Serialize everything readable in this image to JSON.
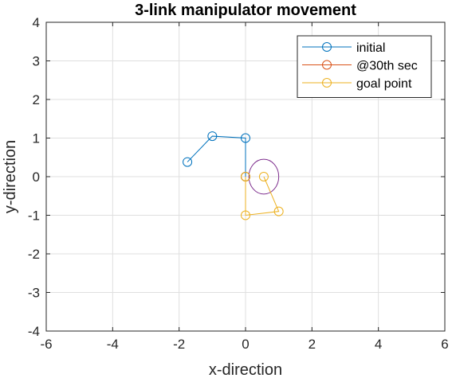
{
  "chart_data": {
    "type": "line",
    "title": "3-link manipulator movement",
    "xlabel": "x-direction",
    "ylabel": "y-direction",
    "xlim": [
      -6,
      6
    ],
    "ylim": [
      -4,
      4
    ],
    "xticks": [
      "-6",
      "-4",
      "-2",
      "0",
      "2",
      "4",
      "6"
    ],
    "yticks": [
      "4",
      "3",
      "2",
      "1",
      "0",
      "-1",
      "-2",
      "-3",
      "-4"
    ],
    "grid": true,
    "legend_position": "top-right",
    "series": [
      {
        "name": "initial",
        "color": "#0072BD",
        "marker": "circle",
        "x": [
          0,
          0,
          -1,
          -1.75
        ],
        "y": [
          0,
          1,
          1.05,
          0.38
        ]
      },
      {
        "name": "@30th sec",
        "color": "#D95319",
        "marker": "circle",
        "x": [
          0
        ],
        "y": [
          0
        ]
      },
      {
        "name": "goal point",
        "color": "#EDB120",
        "marker": "circle",
        "x": [
          0,
          0,
          1,
          0.55
        ],
        "y": [
          0,
          -1,
          -0.9,
          0
        ]
      }
    ],
    "annotations": [
      {
        "type": "circle",
        "color": "#7E2F8E",
        "cx": 0.55,
        "cy": 0,
        "r": 0.45
      }
    ]
  }
}
